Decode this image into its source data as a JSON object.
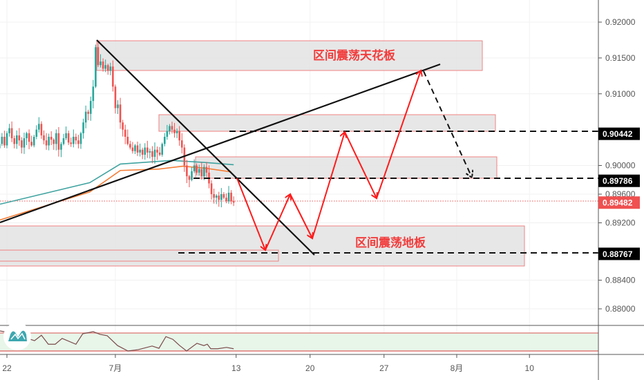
{
  "chart_data": {
    "type": "candlestick",
    "title": "",
    "xlabel": "",
    "ylabel": "",
    "ylim": [
      0.8772,
      0.9231
    ],
    "grid": true,
    "x_ticks": [
      {
        "bar": 0,
        "label": "22"
      },
      {
        "bar": 44,
        "label": "7月"
      },
      {
        "bar": 93,
        "label": "13"
      },
      {
        "bar": 123,
        "label": "20"
      },
      {
        "bar": 153,
        "label": "27"
      },
      {
        "bar": 182.5,
        "label": "8月"
      },
      {
        "bar": 212,
        "label": "10"
      }
    ],
    "y_ticks": [
      "0.92000",
      "0.91500",
      "0.91000",
      "0.90000",
      "0.89600",
      "0.89200",
      "0.88400",
      "0.88000"
    ],
    "y_tick_values": [
      0.92,
      0.915,
      0.91,
      0.9,
      0.896,
      0.892,
      0.884,
      0.88
    ],
    "first_bar": -3,
    "closes": [
      0.903,
      0.904,
      0.9028,
      0.9045,
      0.9052,
      0.9038,
      0.903,
      0.9042,
      0.9035,
      0.9025,
      0.9038,
      0.9045,
      0.9033,
      0.9028,
      0.904,
      0.905,
      0.9058,
      0.9042,
      0.9035,
      0.9028,
      0.904,
      0.9036,
      0.903,
      0.9045,
      0.9022,
      0.903,
      0.9038,
      0.9045,
      0.9032,
      0.903,
      0.904,
      0.9035,
      0.903,
      0.9045,
      0.906,
      0.9075,
      0.9072,
      0.909,
      0.911,
      0.9165,
      0.914,
      0.9145,
      0.9135,
      0.914,
      0.9132,
      0.9138,
      0.911,
      0.908,
      0.9085,
      0.906,
      0.905,
      0.904,
      0.903,
      0.9025,
      0.902,
      0.9028,
      0.9018,
      0.9022,
      0.9015,
      0.9025,
      0.9018,
      0.902,
      0.9012,
      0.9022,
      0.9018,
      0.9015,
      0.903,
      0.904,
      0.9048,
      0.9055,
      0.905,
      0.9045,
      0.9048,
      0.9035,
      0.9025,
      0.9,
      0.8985,
      0.898,
      0.8992,
      0.9,
      0.899,
      0.8995,
      0.8985,
      0.8998,
      0.899,
      0.8975,
      0.896,
      0.8955,
      0.8958,
      0.8952,
      0.896,
      0.8955,
      0.895,
      0.8962,
      0.895,
      0.89482
    ],
    "moving_averages": [
      {
        "name": "MA teal",
        "color": "#3fa3a0",
        "points": [
          [
            -2.8,
            0.8946
          ],
          [
            33.6,
            0.8976
          ],
          [
            46,
            0.9002
          ],
          [
            67,
            0.9007
          ],
          [
            81,
            0.9004
          ],
          [
            92,
            0.9001
          ]
        ]
      },
      {
        "name": "MA orange",
        "color": "#f57c35",
        "points": [
          [
            -2.8,
            0.8924
          ],
          [
            33.6,
            0.8963
          ],
          [
            46,
            0.8993
          ],
          [
            61.7,
            0.8995
          ],
          [
            71.5,
            0.8999
          ],
          [
            81,
            0.8996
          ],
          [
            91,
            0.8991
          ]
        ]
      }
    ],
    "oscillator": {
      "upper_band": 70,
      "lower_band": 30,
      "points": [
        [
          -2.8,
          74.6
        ],
        [
          3.4,
          68.5
        ],
        [
          5.6,
          64
        ],
        [
          6.4,
          47
        ],
        [
          8.4,
          58
        ],
        [
          11.2,
          53
        ],
        [
          14,
          65
        ],
        [
          16.8,
          45
        ],
        [
          19.6,
          45
        ],
        [
          22.4,
          58
        ],
        [
          28,
          45
        ],
        [
          30.8,
          68.5
        ],
        [
          35,
          73
        ],
        [
          37.8,
          67
        ],
        [
          40.7,
          64
        ],
        [
          44.9,
          42
        ],
        [
          49.1,
          30
        ],
        [
          53.3,
          33
        ],
        [
          58.9,
          41
        ],
        [
          61.7,
          36
        ],
        [
          64.5,
          62
        ],
        [
          67.3,
          56
        ],
        [
          70.1,
          42
        ],
        [
          72.9,
          30
        ],
        [
          77.1,
          47
        ],
        [
          79.9,
          42
        ],
        [
          81.3,
          45
        ],
        [
          82.7,
          35
        ],
        [
          85.5,
          35
        ],
        [
          89.1,
          38
        ],
        [
          92,
          35
        ]
      ]
    },
    "price_tags": [
      {
        "label": "0.90442",
        "value": 0.90442,
        "color": "#000000"
      },
      {
        "label": "0.89786",
        "value": 0.89786,
        "color": "#000000"
      },
      {
        "label": "0.89482",
        "value": 0.89482,
        "color": "#f05050"
      },
      {
        "label": "0.88767",
        "value": 0.88767,
        "color": "#000000"
      }
    ],
    "annotations": {
      "ceiling_label": "区间震荡天花板",
      "floor_label": "区间震荡地板"
    },
    "colors": {
      "up": "#26a69a",
      "down": "#ef5350",
      "zone_fill": "#e4e4e4",
      "zone_border": "#f08080",
      "forecast": "#ff1a1a"
    }
  }
}
